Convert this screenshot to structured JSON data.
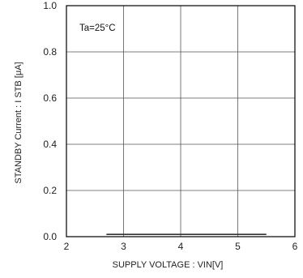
{
  "chart_data": {
    "type": "line",
    "xlabel": "SUPPLY VOLTAGE : VIN[V]",
    "ylabel": "STANDBY Current : I  STB [μA]",
    "annotation": "Ta=25°C",
    "xlim": [
      2,
      6
    ],
    "ylim": [
      0.0,
      1.0
    ],
    "x_ticks": [
      "2",
      "3",
      "4",
      "5",
      "6"
    ],
    "y_ticks": [
      "0.0",
      "0.2",
      "0.4",
      "0.6",
      "0.8",
      "1.0"
    ],
    "grid": true,
    "series": [
      {
        "x": [
          2.7,
          5.5
        ],
        "y": [
          0.01,
          0.01
        ],
        "color": "#333333"
      }
    ]
  }
}
